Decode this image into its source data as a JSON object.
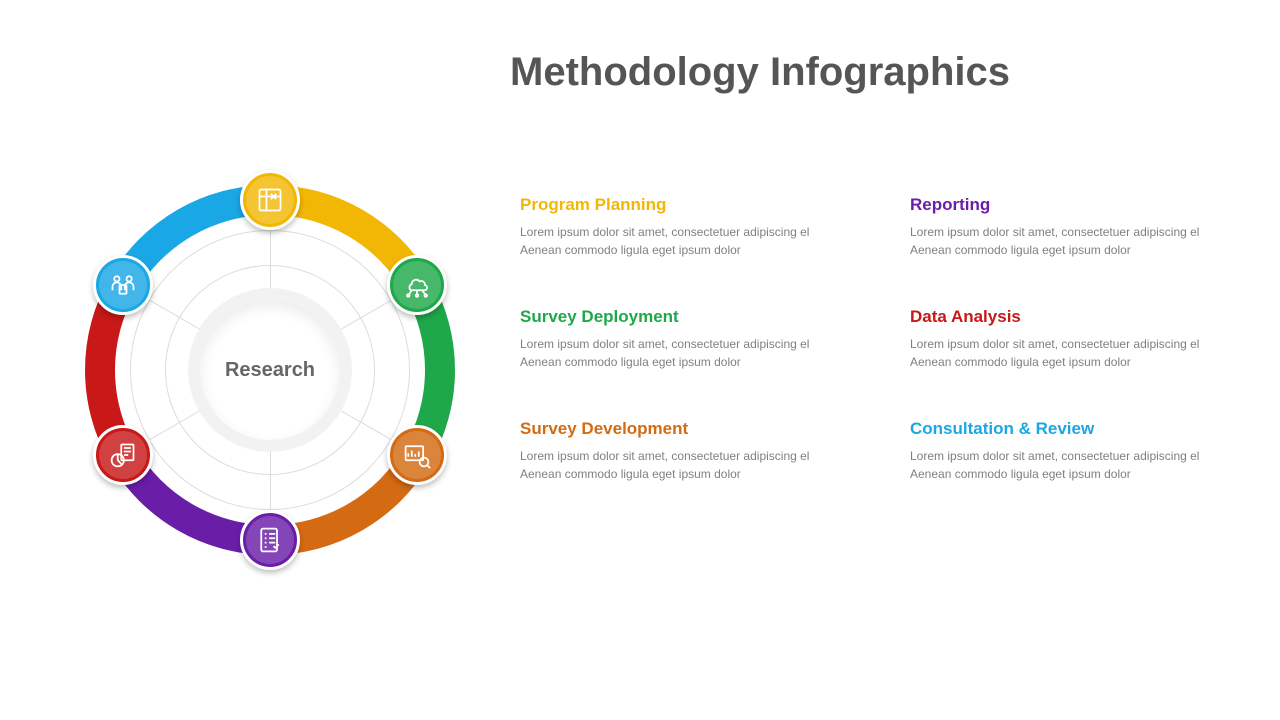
{
  "title": "Methodology Infographics",
  "center": {
    "label": "Research",
    "disc_diameter": 140,
    "label_color": "#666666"
  },
  "diagram": {
    "type": "radial-cycle",
    "size": 420,
    "ring_outer_radius": 185,
    "ring_inner_radius": 155,
    "thin_ring_radii": [
      140,
      105
    ],
    "spoke_inner_radius": 70,
    "spoke_outer_radius": 170,
    "node_diameter": 60,
    "node_inner_diameter": 48,
    "background_color": "#ffffff",
    "thin_ring_color": "#dcdcdc"
  },
  "segments": [
    {
      "id": "program-planning",
      "color": "#f2b705",
      "angle_deg": -90,
      "icon": "blueprint"
    },
    {
      "id": "survey-deployment",
      "color": "#1fa84a",
      "angle_deg": -30,
      "icon": "cloud-nodes"
    },
    {
      "id": "survey-development",
      "color": "#d46a12",
      "angle_deg": 30,
      "icon": "analytics"
    },
    {
      "id": "reporting",
      "color": "#6a1ea8",
      "angle_deg": 90,
      "icon": "checklist"
    },
    {
      "id": "data-analysis",
      "color": "#c91818",
      "angle_deg": 150,
      "icon": "pie-doc"
    },
    {
      "id": "consultation",
      "color": "#1aa7e5",
      "angle_deg": 210,
      "icon": "people"
    }
  ],
  "entries": [
    {
      "title": "Program Planning",
      "color": "#f2b705",
      "body": "Lorem ipsum dolor sit amet, consectetuer adipiscing el Aenean commodo ligula eget ipsum dolor"
    },
    {
      "title": "Reporting",
      "color": "#6a1ea8",
      "body": "Lorem ipsum dolor sit amet, consectetuer adipiscing el Aenean commodo ligula eget ipsum dolor"
    },
    {
      "title": "Survey Deployment",
      "color": "#1fa84a",
      "body": "Lorem ipsum dolor sit amet, consectetuer adipiscing el Aenean commodo ligula eget ipsum dolor"
    },
    {
      "title": "Data Analysis",
      "color": "#c91818",
      "body": "Lorem ipsum dolor sit amet, consectetuer adipiscing el Aenean commodo ligula eget ipsum dolor"
    },
    {
      "title": "Survey Development",
      "color": "#d46a12",
      "body": "Lorem ipsum dolor sit amet, consectetuer adipiscing el Aenean commodo ligula eget ipsum dolor"
    },
    {
      "title": "Consultation & Review",
      "color": "#1aa7e5",
      "body": "Lorem ipsum dolor sit amet, consectetuer adipiscing el Aenean commodo ligula eget ipsum dolor"
    }
  ]
}
